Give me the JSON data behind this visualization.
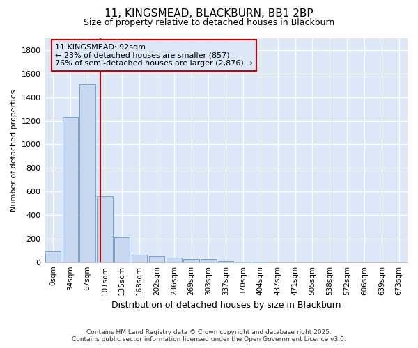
{
  "title": "11, KINGSMEAD, BLACKBURN, BB1 2BP",
  "subtitle": "Size of property relative to detached houses in Blackburn",
  "xlabel": "Distribution of detached houses by size in Blackburn",
  "ylabel": "Number of detached properties",
  "bar_color": "#c8d8f0",
  "bar_edge_color": "#6699cc",
  "categories": [
    "0sqm",
    "34sqm",
    "67sqm",
    "101sqm",
    "135sqm",
    "168sqm",
    "202sqm",
    "236sqm",
    "269sqm",
    "303sqm",
    "337sqm",
    "370sqm",
    "404sqm",
    "437sqm",
    "471sqm",
    "505sqm",
    "538sqm",
    "572sqm",
    "606sqm",
    "639sqm",
    "673sqm"
  ],
  "values": [
    95,
    1235,
    1510,
    560,
    210,
    65,
    50,
    42,
    30,
    25,
    8,
    5,
    5,
    0,
    0,
    0,
    0,
    0,
    0,
    0,
    0
  ],
  "vline_color": "#cc0000",
  "vline_x_index": 2.73,
  "annotation_text": "11 KINGSMEAD: 92sqm\n← 23% of detached houses are smaller (857)\n76% of semi-detached houses are larger (2,876) →",
  "annotation_box_color": "#cc0000",
  "ylim": [
    0,
    1900
  ],
  "yticks": [
    0,
    200,
    400,
    600,
    800,
    1000,
    1200,
    1400,
    1600,
    1800
  ],
  "footer_line1": "Contains HM Land Registry data © Crown copyright and database right 2025.",
  "footer_line2": "Contains public sector information licensed under the Open Government Licence v3.0.",
  "bg_color": "#ffffff",
  "plot_bg_color": "#dce8f8",
  "grid_color": "#ffffff"
}
